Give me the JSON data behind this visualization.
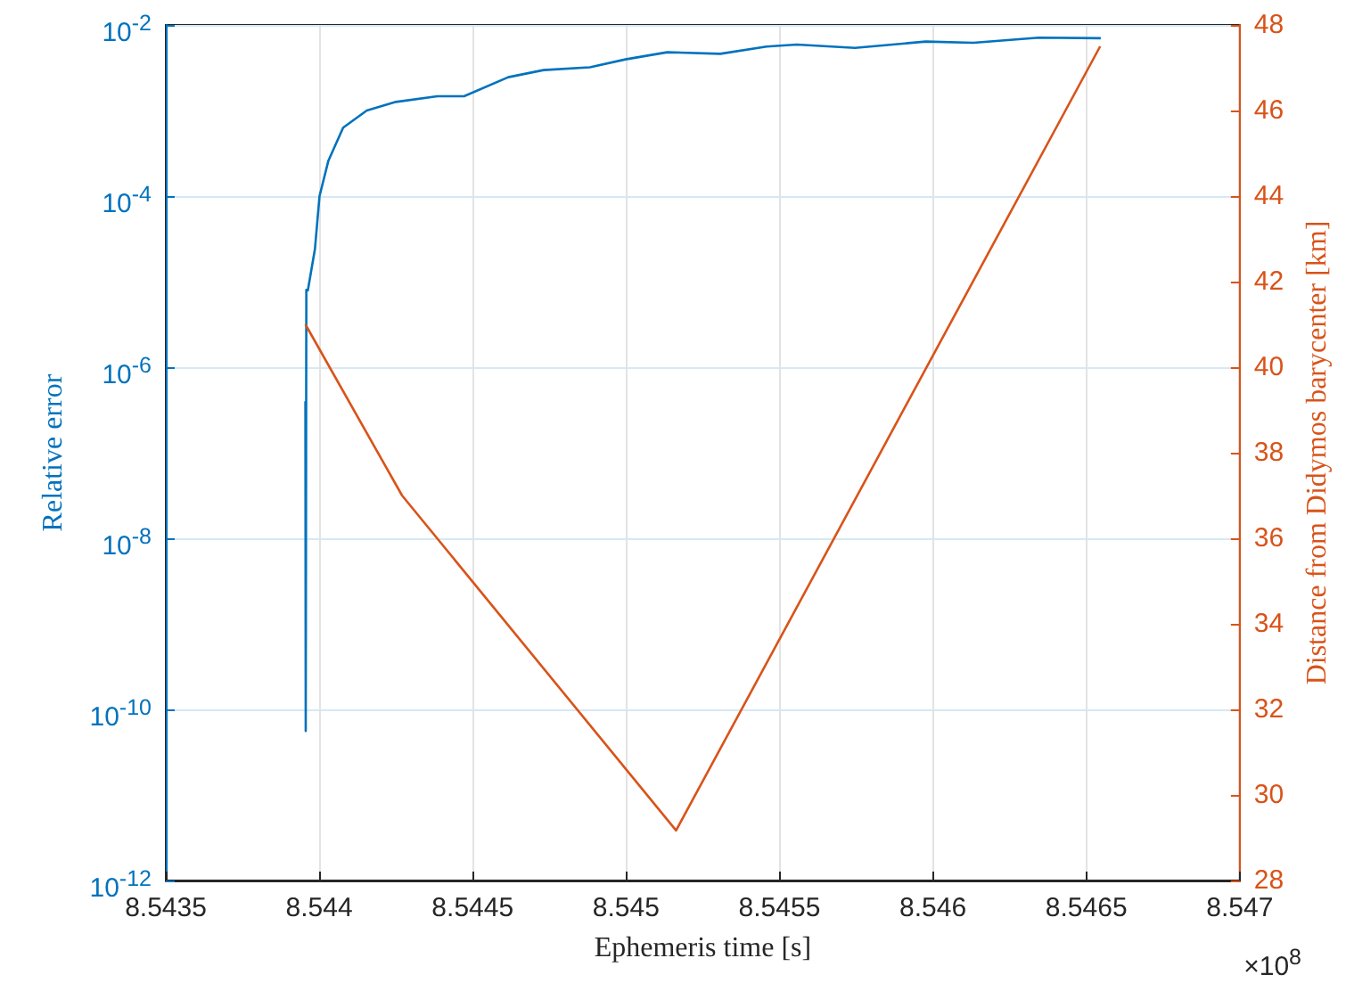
{
  "chart_data": {
    "type": "line",
    "xlabel": "Ephemeris time [s]",
    "ylabel": "Relative error",
    "y2label": "Distance from Didymos barycenter [km]",
    "annotations": [
      "×10$^{8}$"
    ],
    "xlim": [
      8.5435,
      8.547
    ],
    "xticks": [
      8.5435,
      8.544,
      8.5445,
      8.545,
      8.5455,
      8.546,
      8.5465,
      8.547
    ],
    "log": "y",
    "ylim": [
      1e-12,
      0.01
    ],
    "yticks": [
      {
        "value": 1e-12,
        "label": "10$^{-12}$"
      },
      {
        "value": 1e-10,
        "label": "10$^{-10}$"
      },
      {
        "value": 1e-08,
        "label": "10$^{-8}$"
      },
      {
        "value": 1e-06,
        "label": "10$^{-6}$"
      },
      {
        "value": 0.0001,
        "label": "10$^{-4}$"
      },
      {
        "value": 0.01,
        "label": "10$^{-2}$"
      }
    ],
    "y2lim": [
      28,
      48
    ],
    "y2ticks": [
      28,
      30,
      32,
      34,
      36,
      38,
      40,
      42,
      44,
      46,
      48
    ],
    "grid": true,
    "marker": "none",
    "series": [
      {
        "color": "#0072bd",
        "x": [
          8.543955,
          8.543956,
          8.543958,
          8.543963,
          8.543986,
          8.544001,
          8.54403,
          8.544078,
          8.544155,
          8.54425,
          8.544385,
          8.544472,
          8.544616,
          8.544731,
          8.544882,
          8.544998,
          8.545134,
          8.545307,
          8.545458,
          8.545556,
          8.545746,
          8.545977,
          8.546132,
          8.546345,
          8.546547
        ],
        "values": [
          4e-07,
          5.6e-11,
          8e-06,
          7.9e-06,
          2.4e-05,
          0.0001,
          0.00026,
          0.00063,
          0.001,
          0.00126,
          0.00147,
          0.00147,
          0.00245,
          0.00297,
          0.0032,
          0.00396,
          0.0048,
          0.0046,
          0.0056,
          0.0059,
          0.0054,
          0.0064,
          0.0062,
          0.0071,
          0.007
        ]
      },
      {
        "color": "#d95319",
        "axis": "y2",
        "x": [
          8.543955,
          8.54427,
          8.545163,
          8.546545
        ],
        "values": [
          41,
          37,
          29.17,
          47.5
        ]
      }
    ]
  }
}
